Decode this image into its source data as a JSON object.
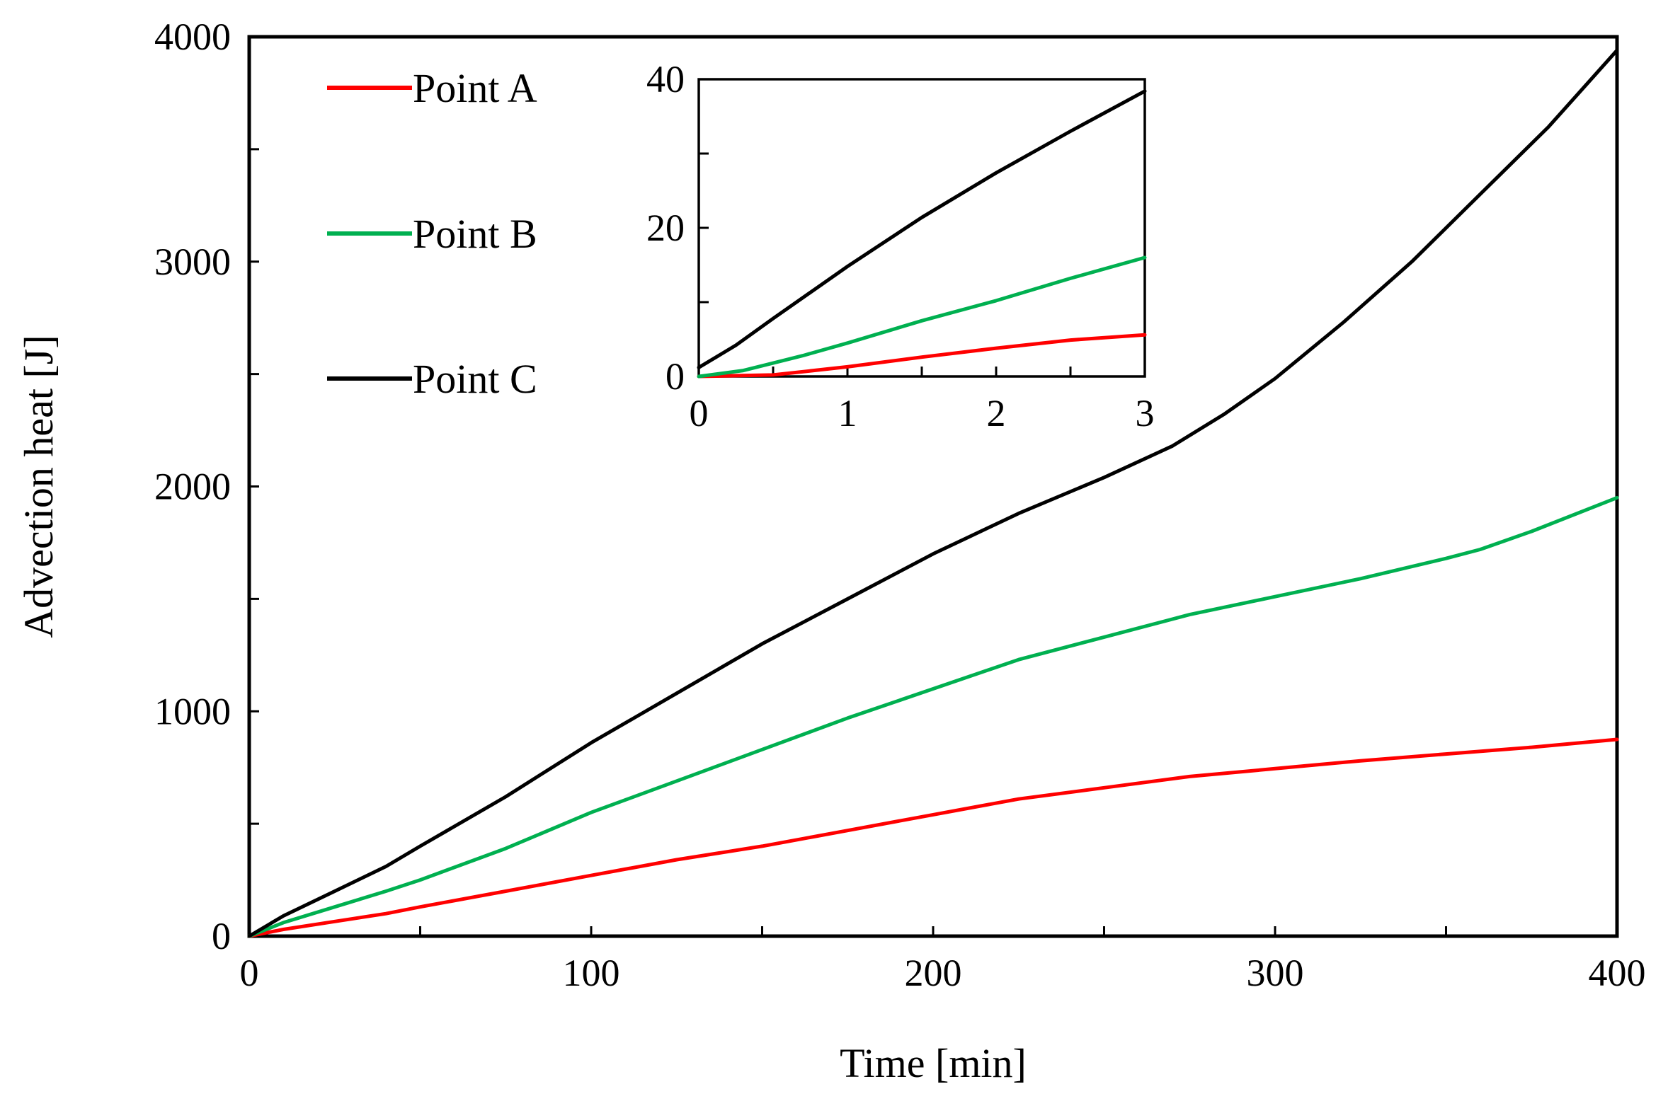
{
  "chart_data": [
    {
      "id": "main",
      "type": "line",
      "title": "",
      "xlabel": "Time [min]",
      "ylabel": "Advection heat [J]",
      "xlim": [
        0,
        400
      ],
      "ylim": [
        0,
        4000
      ],
      "xticks": [
        0,
        100,
        200,
        300,
        400
      ],
      "yticks": [
        0,
        1000,
        2000,
        3000,
        4000
      ],
      "xtick_labels": [
        "0",
        "100",
        "200",
        "300",
        "400"
      ],
      "ytick_labels": [
        "0",
        "1000",
        "2000",
        "3000",
        "4000"
      ],
      "grid": false,
      "legend_position": "top-left",
      "series": [
        {
          "name": "Point A",
          "color": "#ff0000",
          "x": [
            0,
            10,
            25,
            40,
            50,
            75,
            100,
            125,
            150,
            175,
            200,
            225,
            250,
            275,
            300,
            325,
            350,
            375,
            400
          ],
          "y": [
            0,
            30,
            65,
            100,
            130,
            200,
            270,
            340,
            400,
            470,
            540,
            610,
            660,
            710,
            745,
            780,
            810,
            840,
            875
          ]
        },
        {
          "name": "Point B",
          "color": "#00b050",
          "x": [
            0,
            10,
            25,
            40,
            50,
            75,
            100,
            125,
            150,
            175,
            200,
            225,
            250,
            275,
            300,
            325,
            350,
            360,
            375,
            400
          ],
          "y": [
            0,
            60,
            130,
            200,
            250,
            390,
            550,
            690,
            830,
            970,
            1100,
            1230,
            1330,
            1430,
            1510,
            1590,
            1680,
            1720,
            1800,
            1950
          ]
        },
        {
          "name": "Point C",
          "color": "#000000",
          "x": [
            0,
            10,
            25,
            40,
            50,
            75,
            100,
            125,
            150,
            175,
            200,
            225,
            250,
            270,
            285,
            300,
            320,
            340,
            360,
            380,
            400
          ],
          "y": [
            0,
            90,
            200,
            310,
            400,
            620,
            860,
            1080,
            1300,
            1500,
            1700,
            1880,
            2040,
            2180,
            2320,
            2480,
            2730,
            3000,
            3300,
            3600,
            3940
          ]
        }
      ]
    },
    {
      "id": "inset",
      "type": "line",
      "title": "",
      "xlabel": "",
      "ylabel": "",
      "xlim": [
        0,
        3
      ],
      "ylim": [
        0,
        40
      ],
      "xticks": [
        0,
        1,
        2,
        3
      ],
      "yticks": [
        0,
        20,
        40
      ],
      "xtick_labels": [
        "0",
        "1",
        "2",
        "3"
      ],
      "ytick_labels": [
        "0",
        "20",
        "40"
      ],
      "grid": false,
      "series": [
        {
          "name": "Point A",
          "color": "#ff0000",
          "x": [
            0,
            0.5,
            1,
            1.5,
            2,
            2.5,
            3
          ],
          "y": [
            0,
            0.2,
            1.3,
            2.6,
            3.8,
            4.9,
            5.6
          ]
        },
        {
          "name": "Point B",
          "color": "#00b050",
          "x": [
            0,
            0.3,
            0.7,
            1,
            1.5,
            2,
            2.5,
            3
          ],
          "y": [
            0,
            0.8,
            2.8,
            4.5,
            7.5,
            10.2,
            13.2,
            16
          ]
        },
        {
          "name": "Point C",
          "color": "#000000",
          "x": [
            0,
            0.25,
            0.5,
            1,
            1.5,
            2,
            2.5,
            3
          ],
          "y": [
            1.2,
            4.2,
            7.8,
            14.8,
            21.4,
            27.4,
            33,
            38.4
          ]
        }
      ]
    }
  ]
}
